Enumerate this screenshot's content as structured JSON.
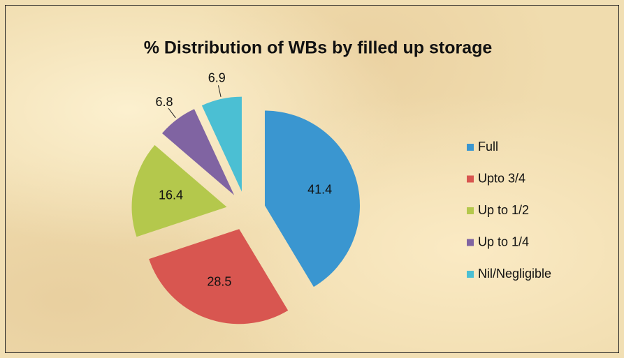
{
  "chart_data": {
    "type": "pie",
    "title": "% Distribution of WBs by filled up storage",
    "categories": [
      "Full",
      "Upto 3/4",
      "Up to 1/2",
      "Up to 1/4",
      "Nil/Negligible"
    ],
    "values": [
      41.4,
      28.5,
      16.4,
      6.8,
      6.9
    ],
    "colors": [
      "#3a96d0",
      "#d85650",
      "#b4c84c",
      "#8064a2",
      "#4bbfd3"
    ],
    "exploded": true,
    "legend": "right"
  }
}
